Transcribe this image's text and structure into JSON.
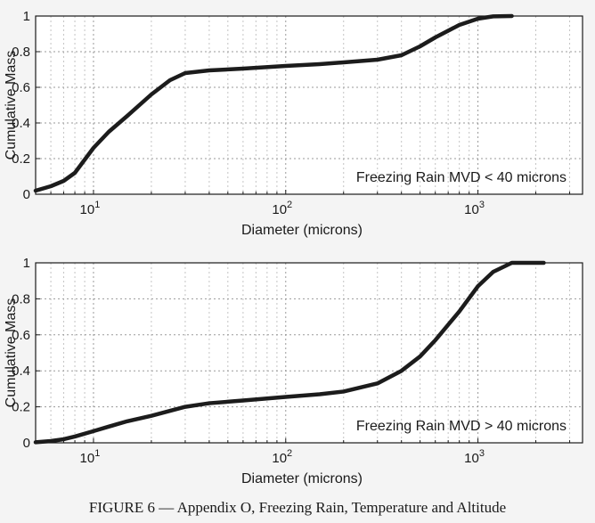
{
  "figure_caption": "FIGURE 6 — Appendix O, Freezing Rain, Temperature and Altitude",
  "chart_data": [
    {
      "type": "line",
      "xscale": "log",
      "xlim": [
        5,
        3500
      ],
      "ylim": [
        0,
        1
      ],
      "xticks": [
        {
          "base": "10",
          "exp": "1"
        },
        {
          "base": "10",
          "exp": "2"
        },
        {
          "base": "10",
          "exp": "3"
        }
      ],
      "yticks": [
        "0",
        "0.2",
        "0.4",
        "0.6",
        "0.8",
        "1"
      ],
      "xlabel": "Diameter (microns)",
      "ylabel": "Cumulative Mass",
      "annotation": "Freezing Rain MVD < 40 microns",
      "grid": true,
      "x": [
        5,
        6,
        7,
        8,
        10,
        12,
        15,
        20,
        25,
        30,
        40,
        60,
        100,
        150,
        200,
        300,
        400,
        500,
        600,
        800,
        1000,
        1200,
        1500
      ],
      "y": [
        0.02,
        0.045,
        0.075,
        0.12,
        0.26,
        0.35,
        0.44,
        0.56,
        0.64,
        0.68,
        0.695,
        0.705,
        0.72,
        0.73,
        0.74,
        0.755,
        0.78,
        0.83,
        0.88,
        0.95,
        0.985,
        0.998,
        1.0
      ]
    },
    {
      "type": "line",
      "xscale": "log",
      "xlim": [
        5,
        3500
      ],
      "ylim": [
        0,
        1
      ],
      "xticks": [
        {
          "base": "10",
          "exp": "1"
        },
        {
          "base": "10",
          "exp": "2"
        },
        {
          "base": "10",
          "exp": "3"
        }
      ],
      "yticks": [
        "0",
        "0.2",
        "0.4",
        "0.6",
        "0.8",
        "1"
      ],
      "xlabel": "Diameter (microns)",
      "ylabel": "Cumulative Mass",
      "annotation": "Freezing Rain MVD > 40 microns",
      "grid": true,
      "x": [
        5,
        6,
        7,
        8,
        10,
        12,
        15,
        20,
        30,
        40,
        60,
        100,
        150,
        200,
        300,
        400,
        500,
        600,
        800,
        1000,
        1200,
        1500,
        2200
      ],
      "y": [
        0.003,
        0.01,
        0.02,
        0.035,
        0.065,
        0.09,
        0.12,
        0.15,
        0.2,
        0.22,
        0.235,
        0.255,
        0.27,
        0.285,
        0.33,
        0.4,
        0.48,
        0.57,
        0.73,
        0.87,
        0.95,
        1.0,
        1.0
      ]
    }
  ]
}
